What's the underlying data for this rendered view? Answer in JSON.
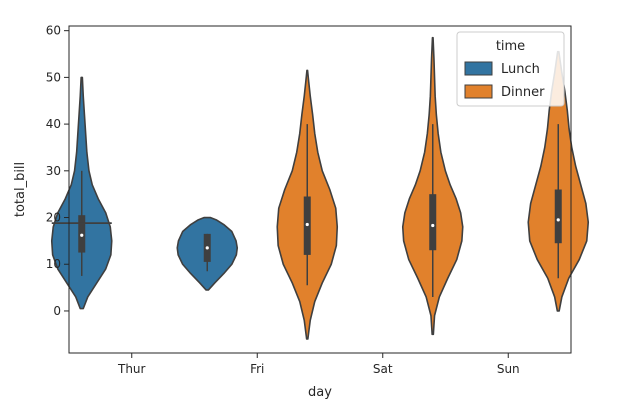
{
  "chart_data": {
    "type": "violin",
    "xlabel": "day",
    "ylabel": "total_bill",
    "categories": [
      "Thur",
      "Fri",
      "Sat",
      "Sun"
    ],
    "yticks": [
      0,
      10,
      20,
      30,
      40,
      50,
      60
    ],
    "ylim": [
      -9,
      61
    ],
    "grid": false,
    "legend": {
      "title": "time",
      "position": "top-right",
      "entries": [
        {
          "name": "Lunch",
          "color": "#3274a1"
        },
        {
          "name": "Dinner",
          "color": "#e1812c"
        }
      ]
    },
    "series": [
      {
        "name": "Lunch",
        "color": "#3274a1",
        "violins": [
          {
            "category": "Thur",
            "min": 0.5,
            "max": 50,
            "q1": 12.5,
            "median": 16.2,
            "q3": 20.5,
            "whisker_low": 7.5,
            "whisker_high": 30,
            "profile": [
              [
                0.5,
                0.05
              ],
              [
                3,
                0.2
              ],
              [
                6,
                0.5
              ],
              [
                9,
                0.8
              ],
              [
                12,
                0.97
              ],
              [
                15,
                1.0
              ],
              [
                18,
                0.95
              ],
              [
                21,
                0.8
              ],
              [
                24,
                0.55
              ],
              [
                27,
                0.35
              ],
              [
                30,
                0.24
              ],
              [
                34,
                0.17
              ],
              [
                38,
                0.13
              ],
              [
                42,
                0.09
              ],
              [
                46,
                0.05
              ],
              [
                50,
                0.02
              ]
            ]
          },
          {
            "category": "Fri",
            "min": 4.5,
            "max": 20,
            "q1": 10.5,
            "median": 13.5,
            "q3": 16.5,
            "whisker_low": 8.5,
            "whisker_high": 16.5,
            "profile": [
              [
                4.5,
                0.04
              ],
              [
                6,
                0.25
              ],
              [
                8,
                0.55
              ],
              [
                10,
                0.82
              ],
              [
                12,
                0.97
              ],
              [
                13.5,
                1.0
              ],
              [
                15,
                0.96
              ],
              [
                17,
                0.82
              ],
              [
                18.5,
                0.55
              ],
              [
                19.5,
                0.3
              ],
              [
                20,
                0.1
              ]
            ]
          }
        ],
        "single_points": [
          {
            "category": "Thur",
            "value": 18.8
          }
        ]
      },
      {
        "name": "Dinner",
        "color": "#e1812c",
        "violins": [
          {
            "category": "Fri",
            "min": -6,
            "max": 51.5,
            "q1": 12,
            "median": 18.5,
            "q3": 24.5,
            "whisker_low": 5.5,
            "whisker_high": 40,
            "profile": [
              [
                -6,
                0.02
              ],
              [
                -2,
                0.1
              ],
              [
                2,
                0.25
              ],
              [
                6,
                0.5
              ],
              [
                10,
                0.8
              ],
              [
                14,
                0.97
              ],
              [
                18,
                1.0
              ],
              [
                22,
                0.95
              ],
              [
                26,
                0.75
              ],
              [
                30,
                0.5
              ],
              [
                34,
                0.35
              ],
              [
                38,
                0.25
              ],
              [
                42,
                0.18
              ],
              [
                46,
                0.1
              ],
              [
                49,
                0.05
              ],
              [
                51.5,
                0.01
              ]
            ]
          },
          {
            "category": "Sat",
            "min": -5,
            "max": 58.5,
            "q1": 13,
            "median": 18.3,
            "q3": 25,
            "whisker_low": 3,
            "whisker_high": 40,
            "profile": [
              [
                -5,
                0.02
              ],
              [
                -1,
                0.06
              ],
              [
                3,
                0.22
              ],
              [
                7,
                0.5
              ],
              [
                11,
                0.8
              ],
              [
                15,
                0.97
              ],
              [
                18,
                1.0
              ],
              [
                21,
                0.93
              ],
              [
                24,
                0.78
              ],
              [
                27,
                0.58
              ],
              [
                30,
                0.42
              ],
              [
                34,
                0.27
              ],
              [
                38,
                0.18
              ],
              [
                42,
                0.12
              ],
              [
                46,
                0.08
              ],
              [
                50,
                0.06
              ],
              [
                54,
                0.04
              ],
              [
                58.5,
                0.01
              ]
            ]
          },
          {
            "category": "Sun",
            "min": 0,
            "max": 55.5,
            "q1": 14.5,
            "median": 19.5,
            "q3": 26,
            "whisker_low": 7,
            "whisker_high": 40,
            "profile": [
              [
                0,
                0.03
              ],
              [
                3,
                0.12
              ],
              [
                7,
                0.35
              ],
              [
                11,
                0.7
              ],
              [
                15,
                0.95
              ],
              [
                19,
                1.0
              ],
              [
                23,
                0.92
              ],
              [
                27,
                0.75
              ],
              [
                31,
                0.58
              ],
              [
                35,
                0.45
              ],
              [
                39,
                0.36
              ],
              [
                43,
                0.3
              ],
              [
                47,
                0.22
              ],
              [
                51,
                0.12
              ],
              [
                55.5,
                0.02
              ]
            ]
          }
        ],
        "single_points": []
      }
    ]
  }
}
